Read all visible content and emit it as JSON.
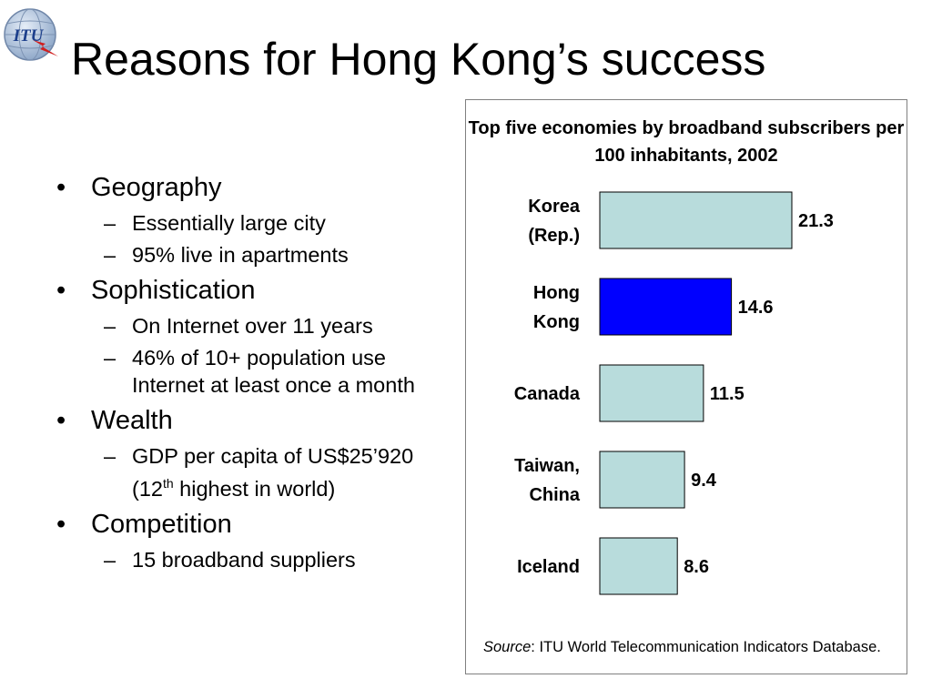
{
  "logo": {
    "text": "ITU"
  },
  "title": "Reasons for Hong Kong’s success",
  "bullets": [
    {
      "text": "Geography",
      "subs": [
        "Essentially large city",
        "95% live in apartments"
      ]
    },
    {
      "text": "Sophistication",
      "subs": [
        "On Internet over 11 years",
        "46% of 10+ population use Internet at least once a month"
      ]
    },
    {
      "text": "Wealth",
      "subs": [
        {
          "pre": "GDP per capita of US$25’920 (12",
          "sup": "th",
          "post": " highest in world)"
        }
      ]
    },
    {
      "text": "Competition",
      "subs": [
        "15 broadband suppliers"
      ]
    }
  ],
  "markers": {
    "bullet": "•",
    "dash": "–"
  },
  "chart_data": {
    "type": "bar",
    "orientation": "horizontal",
    "title": "Top five economies by broadband subscribers per 100 inhabitants, 2002",
    "categories": [
      [
        "Korea",
        "(Rep.)"
      ],
      [
        "Hong",
        "Kong"
      ],
      [
        "Canada"
      ],
      [
        "Taiwan,",
        "China"
      ],
      [
        "Iceland"
      ]
    ],
    "values": [
      21.3,
      14.6,
      11.5,
      9.4,
      8.6
    ],
    "value_labels": [
      "21.3",
      "14.6",
      "11.5",
      "9.4",
      "8.6"
    ],
    "colors": [
      "#b8dcdc",
      "#0000ff",
      "#b8dcdc",
      "#b8dcdc",
      "#b8dcdc"
    ],
    "xlim": [
      0,
      21.3
    ],
    "grid": false
  },
  "source": {
    "label": "Source",
    "text": ": ITU World Telecommunication Indicators Database."
  }
}
